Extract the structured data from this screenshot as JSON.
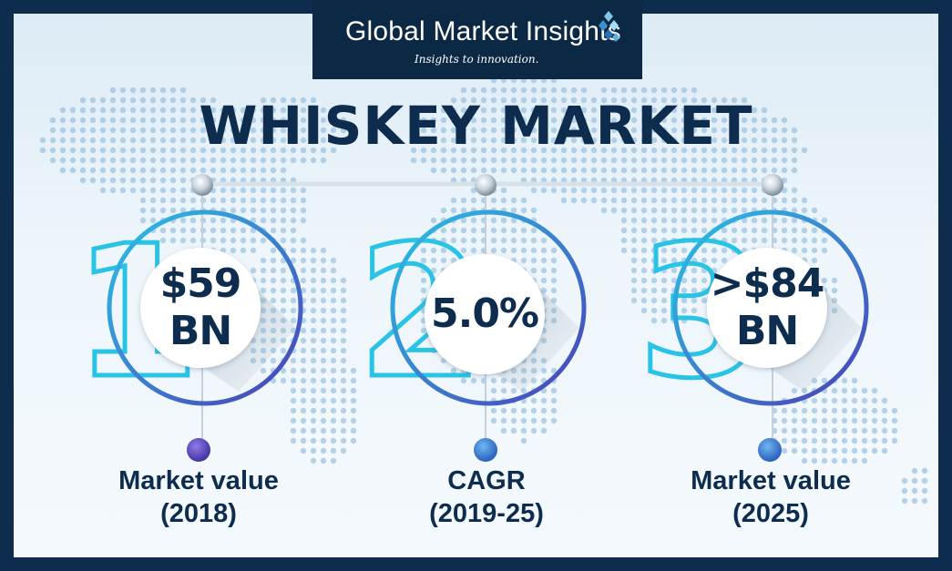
{
  "brand": {
    "name": "Global Market Insights",
    "tagline_prefix": "Insights to ",
    "tagline_emphasis": "innovation."
  },
  "title": "WHISKEY MARKET",
  "stats": [
    {
      "number": "1",
      "value_line1": "$59",
      "value_line2": "BN",
      "label_line1": "Market value",
      "label_line2": "(2018)"
    },
    {
      "number": "2",
      "value_line1": "5.0%",
      "value_line2": "",
      "label_line1": "CAGR",
      "label_line2": "(2019-25)"
    },
    {
      "number": "3",
      "value_line1": ">$84",
      "value_line2": "BN",
      "label_line1": "Market value",
      "label_line2": "(2025)"
    }
  ],
  "colors": {
    "navy": "#0d2c4e",
    "cyan": "#29c3e6",
    "purple": "#4b3fb7",
    "map_dots": "#9fc4e0"
  }
}
